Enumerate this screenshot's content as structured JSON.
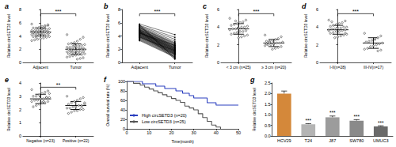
{
  "chart_data": [
    {
      "title": "a",
      "type": "scatter",
      "categories": [
        "Adjacent",
        "Tumor"
      ],
      "values": [
        [
          5.8,
          5.6,
          5.5,
          5.4,
          5.3,
          5.2,
          5.2,
          5.1,
          5.0,
          5.0,
          4.9,
          4.9,
          4.8,
          4.8,
          4.7,
          4.7,
          4.6,
          4.6,
          4.6,
          4.5,
          4.5,
          4.5,
          4.4,
          4.4,
          4.3,
          4.3,
          4.2,
          4.2,
          4.1,
          4.1,
          4.0,
          4.0,
          3.9,
          3.9,
          3.8,
          3.7,
          3.6,
          3.5,
          3.4,
          3.3,
          5.7,
          5.5,
          4.8,
          4.4,
          3.8
        ],
        [
          4.2,
          3.8,
          3.5,
          3.2,
          3.0,
          2.9,
          2.8,
          2.7,
          2.6,
          2.5,
          2.5,
          2.4,
          2.3,
          2.3,
          2.2,
          2.2,
          2.1,
          2.1,
          2.0,
          2.0,
          1.9,
          1.9,
          1.8,
          1.8,
          1.7,
          1.7,
          1.6,
          1.6,
          1.5,
          1.5,
          1.4,
          1.4,
          1.3,
          1.3,
          1.2,
          1.2,
          1.1,
          1.0,
          0.9,
          0.8,
          0.7,
          0.6,
          0.5,
          2.6,
          1.8
        ]
      ],
      "means": [
        4.6,
        2.0
      ],
      "errors": [
        0.6,
        0.8
      ],
      "color": "#000000",
      "y_label": "Relative circSETD3 level",
      "ylim": [
        0,
        8
      ],
      "yticks": [
        0,
        2,
        4,
        6,
        8
      ],
      "grid": false,
      "annotation": "***"
    },
    {
      "title": "b",
      "type": "line",
      "categories": [
        "Adjacent",
        "Tumor"
      ],
      "values": [
        [
          5.8,
          5.6,
          5.5,
          5.4,
          5.3,
          5.2,
          5.2,
          5.1,
          5.0,
          5.0,
          4.9,
          4.9,
          4.8,
          4.8,
          4.7,
          4.7,
          4.6,
          4.6,
          4.6,
          4.5,
          4.5,
          4.5,
          4.4,
          4.4,
          4.3,
          4.3,
          4.2,
          4.2,
          4.1,
          4.1,
          4.0,
          4.0,
          3.9,
          3.9,
          3.8,
          3.7,
          3.6,
          3.5,
          3.4,
          3.3,
          5.7,
          5.5,
          4.8,
          4.4,
          3.8
        ],
        [
          4.2,
          3.8,
          3.5,
          3.2,
          3.0,
          2.9,
          2.8,
          2.7,
          2.6,
          2.5,
          2.5,
          2.4,
          2.3,
          2.3,
          2.2,
          2.2,
          2.1,
          2.1,
          2.0,
          2.0,
          1.9,
          1.9,
          1.8,
          1.8,
          1.7,
          1.7,
          1.6,
          1.6,
          1.5,
          1.5,
          1.4,
          1.4,
          1.3,
          1.3,
          1.2,
          1.2,
          1.1,
          1.0,
          0.9,
          0.8,
          0.7,
          0.6,
          0.5,
          2.6,
          1.8
        ]
      ],
      "color": "#000000",
      "y_label": "Relative circSETD3 level",
      "ylim": [
        0,
        8
      ],
      "yticks": [
        0,
        2,
        4,
        6,
        8
      ],
      "grid": false,
      "annotation": "***"
    },
    {
      "title": "c",
      "type": "scatter",
      "categories": [
        "< 3 cm (n=25)",
        "≥ 3 cm (n=20)"
      ],
      "values": [
        [
          5.0,
          4.8,
          4.6,
          4.5,
          4.4,
          4.3,
          4.2,
          4.1,
          4.0,
          4.0,
          3.9,
          3.8,
          3.8,
          3.7,
          3.6,
          3.5,
          3.5,
          3.4,
          3.3,
          3.2,
          3.1,
          3.0,
          2.9,
          2.8,
          4.7
        ],
        [
          3.1,
          2.9,
          2.7,
          2.6,
          2.5,
          2.4,
          2.4,
          2.3,
          2.2,
          2.2,
          2.1,
          2.0,
          2.0,
          1.9,
          1.8,
          1.7,
          1.6,
          1.5,
          2.3,
          2.1
        ]
      ],
      "means": [
        3.8,
        2.2
      ],
      "errors": [
        0.6,
        0.4
      ],
      "color": "#000000",
      "y_label": "Relative circSETD3 level",
      "ylim": [
        0,
        6
      ],
      "yticks": [
        0,
        2,
        4,
        6
      ],
      "grid": false,
      "annotation": "***"
    },
    {
      "title": "d",
      "type": "scatter",
      "categories": [
        "I-II(n=28)",
        "III-IV(n=17)"
      ],
      "values": [
        [
          4.8,
          4.7,
          4.5,
          4.4,
          4.3,
          4.2,
          4.1,
          4.0,
          4.0,
          3.9,
          3.9,
          3.8,
          3.8,
          3.7,
          3.7,
          3.6,
          3.5,
          3.5,
          3.4,
          3.3,
          3.2,
          3.1,
          3.0,
          2.9,
          2.8,
          4.6,
          3.6,
          3.3
        ],
        [
          3.3,
          3.0,
          2.8,
          2.6,
          2.5,
          2.4,
          2.3,
          2.2,
          2.1,
          2.0,
          1.9,
          1.8,
          1.6,
          1.5,
          1.4,
          1.3,
          2.7
        ]
      ],
      "means": [
        3.7,
        2.2
      ],
      "errors": [
        0.5,
        0.6
      ],
      "color": "#000000",
      "y_label": "Relative circSETD3 level",
      "ylim": [
        0,
        6
      ],
      "yticks": [
        0,
        2,
        4,
        6
      ],
      "grid": false,
      "annotation": "***"
    },
    {
      "title": "e",
      "type": "scatter",
      "categories": [
        "Negative (n=23)",
        "Positive (n=22)"
      ],
      "values": [
        [
          3.5,
          3.4,
          3.3,
          3.2,
          3.1,
          3.0,
          3.0,
          2.9,
          2.9,
          2.8,
          2.8,
          2.7,
          2.7,
          2.6,
          2.6,
          2.5,
          2.5,
          2.4,
          2.3,
          2.2,
          3.2,
          2.9,
          2.6
        ],
        [
          3.0,
          2.9,
          2.8,
          2.7,
          2.6,
          2.5,
          2.4,
          2.4,
          2.3,
          2.3,
          2.2,
          2.2,
          2.1,
          2.1,
          2.0,
          2.0,
          1.9,
          1.9,
          1.8,
          1.7,
          2.5,
          2.2
        ]
      ],
      "means": [
        2.8,
        2.3
      ],
      "errors": [
        0.35,
        0.3
      ],
      "color": "#000000",
      "y_label": "Relative circSETD3 level",
      "ylim": [
        0,
        4
      ],
      "yticks": [
        0,
        1,
        2,
        3,
        4
      ],
      "grid": false,
      "annotation": "**"
    },
    {
      "title": "f",
      "type": "line",
      "line_style": "step",
      "legend": "lower left",
      "x_label": "Time(month)",
      "y_label": "Overall survival rate (%)",
      "xlim": [
        0,
        50
      ],
      "xticks": [
        0,
        10,
        20,
        30,
        40,
        50
      ],
      "ylim": [
        0,
        100
      ],
      "yticks": [
        0,
        20,
        40,
        60,
        80,
        100
      ],
      "grid": false,
      "series": [
        {
          "name": "High circSETD3 (n=20)",
          "color": "#2b3fbf",
          "x": [
            0,
            7,
            13,
            17,
            22,
            25,
            28,
            30,
            36,
            40,
            50
          ],
          "values": [
            100,
            95,
            90,
            85,
            80,
            75,
            70,
            65,
            55,
            50,
            50
          ]
        },
        {
          "name": "Low circSETD3 (n=25)",
          "color": "#555555",
          "x": [
            0,
            3,
            6,
            8,
            10,
            12,
            14,
            16,
            18,
            20,
            22,
            24,
            26,
            28,
            30,
            32,
            34,
            36,
            38,
            40,
            42
          ],
          "values": [
            100,
            96,
            92,
            88,
            84,
            80,
            76,
            72,
            68,
            64,
            60,
            56,
            48,
            44,
            40,
            32,
            24,
            16,
            8,
            4,
            0
          ]
        }
      ]
    },
    {
      "title": "g",
      "type": "bar",
      "categories": [
        "HCV29",
        "T24",
        "J87",
        "SW780",
        "UMUC3"
      ],
      "values": [
        2.0,
        0.55,
        0.88,
        0.72,
        0.45
      ],
      "errors": [
        0.12,
        0.03,
        0.06,
        0.05,
        0.03
      ],
      "colors": [
        "#d4883a",
        "#b4b4b4",
        "#9c9c9c",
        "#8a8a8a",
        "#6a6a6a"
      ],
      "annotations": [
        null,
        "***",
        "***",
        "***",
        "***"
      ],
      "y_label": "Relative circSETD3 level",
      "ylim": [
        0,
        2.5
      ],
      "yticks": [
        {
          "value": 0,
          "label": "0.0"
        },
        {
          "value": 0.5,
          "label": "0.5"
        },
        {
          "value": 1,
          "label": "1.0"
        },
        {
          "value": 1.5,
          "label": "1.5"
        },
        {
          "value": 2,
          "label": "2.0"
        },
        {
          "value": 2.5,
          "label": "2.5"
        }
      ],
      "grid": false
    }
  ]
}
